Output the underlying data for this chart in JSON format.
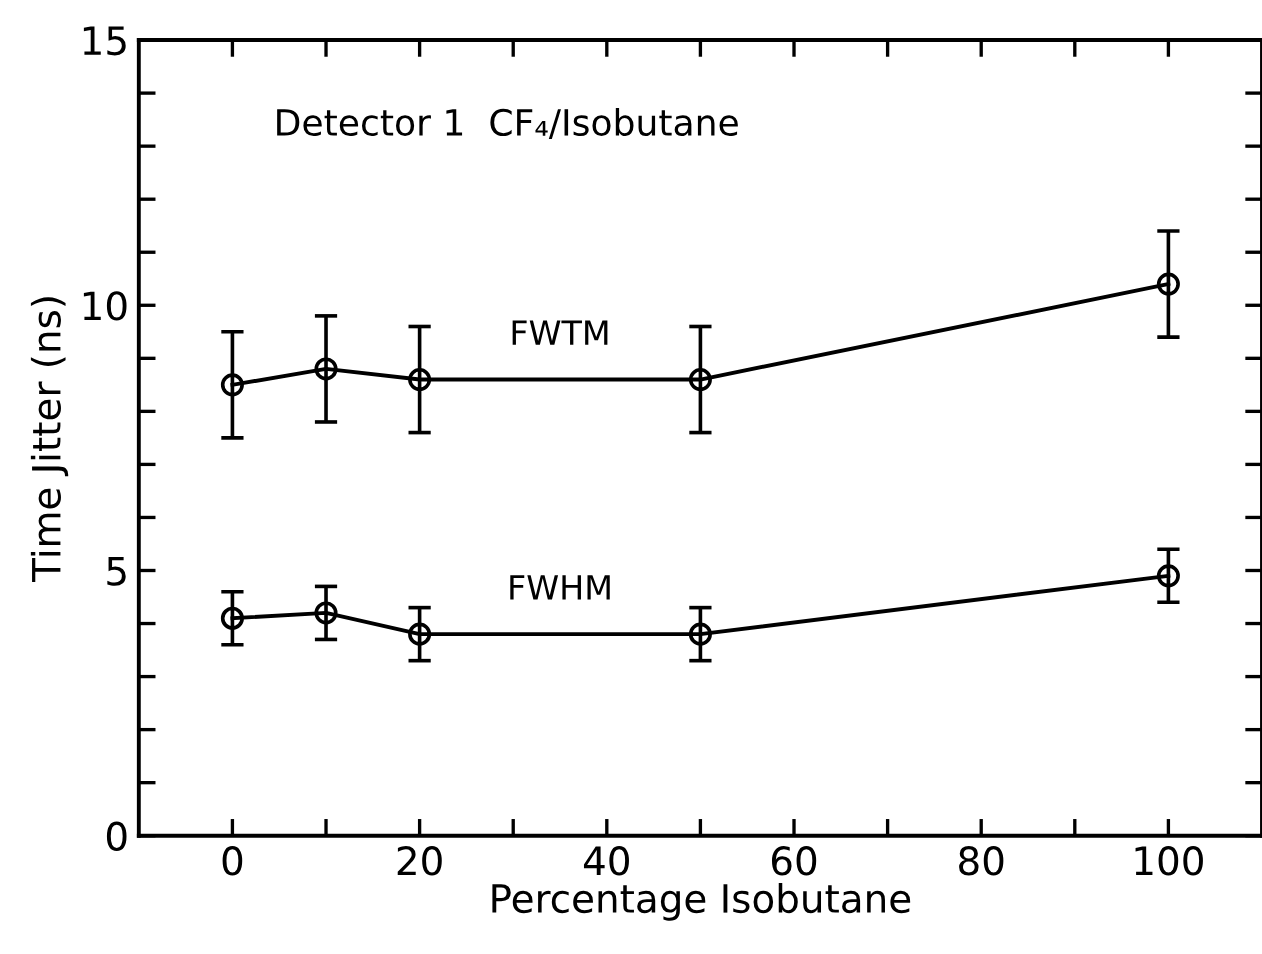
{
  "chart_data": {
    "type": "line",
    "xlabel": "Percentage Isobutane",
    "ylabel": "Time Jitter (ns)",
    "annotations": [
      "Detector 1  CF₄/Isobutane"
    ],
    "x": [
      0,
      10,
      20,
      50,
      100
    ],
    "series": [
      {
        "name": "FWTM",
        "color": "#000000",
        "values": [
          8.5,
          8.8,
          8.6,
          8.6,
          10.4
        ],
        "errors": [
          1,
          1,
          1,
          1,
          1
        ]
      },
      {
        "name": "FWHM",
        "color": "#000000",
        "values": [
          4.1,
          4.2,
          3.8,
          3.8,
          4.9
        ],
        "errors": [
          0.5,
          0.5,
          0.5,
          0.5,
          0.5
        ]
      }
    ],
    "xlim": [
      -10,
      110
    ],
    "ylim": [
      0,
      15
    ],
    "xticks": [
      0,
      {
        "value": 10,
        "label": null
      },
      20,
      {
        "value": 30,
        "label": null
      },
      40,
      {
        "value": 50,
        "label": null
      },
      60,
      {
        "value": 70,
        "label": null
      },
      80,
      {
        "value": 90,
        "label": null
      },
      100
    ],
    "yticks": [
      0,
      {
        "value": 1,
        "label": null
      },
      {
        "value": 2,
        "label": null
      },
      {
        "value": 3,
        "label": null
      },
      {
        "value": 4,
        "label": null
      },
      5,
      {
        "value": 6,
        "label": null
      },
      {
        "value": 7,
        "label": null
      },
      {
        "value": 8,
        "label": null
      },
      {
        "value": 9,
        "label": null
      },
      10,
      {
        "value": 11,
        "label": null
      },
      {
        "value": 12,
        "label": null
      },
      {
        "value": 13,
        "label": null
      },
      {
        "value": 14,
        "label": null
      },
      15
    ],
    "marker": "circle",
    "line_style": "solid",
    "grid": false,
    "legend": false
  }
}
